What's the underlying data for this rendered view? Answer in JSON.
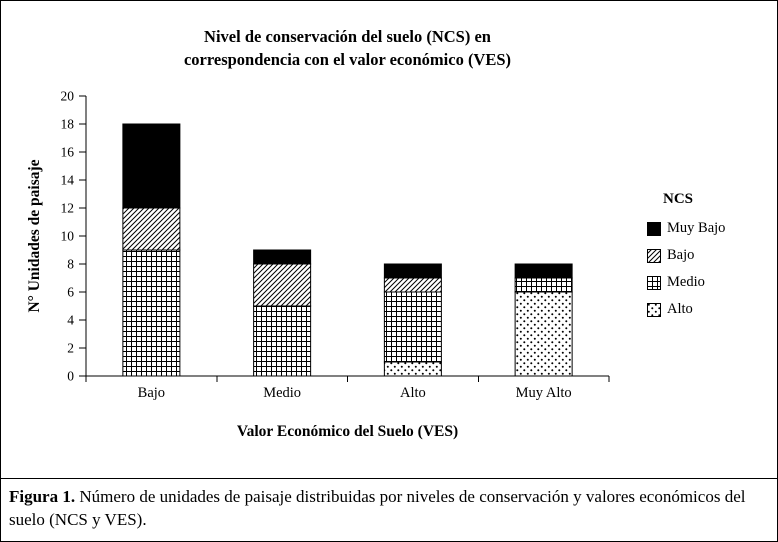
{
  "figure": {
    "caption_label": "Figura 1.",
    "caption_text": " Número de unidades de paisaje distribuidas por niveles de conservación y valores económicos del suelo (NCS y VES)."
  },
  "chart_data": {
    "type": "bar",
    "stacked": true,
    "title_line1": "Nivel de conservación del suelo (NCS) en",
    "title_line2": "correspondencia con el valor económico (VES)",
    "xlabel": "Valor Económico del Suelo (VES)",
    "ylabel": "N° Unidades de paisaje",
    "categories": [
      "Bajo",
      "Medio",
      "Alto",
      "Muy Alto"
    ],
    "series": [
      {
        "name": "Alto",
        "pattern": "dots",
        "values": [
          0,
          0,
          1,
          6
        ]
      },
      {
        "name": "Medio",
        "pattern": "grid",
        "values": [
          9,
          5,
          5,
          1
        ]
      },
      {
        "name": "Bajo",
        "pattern": "diagonal",
        "values": [
          3,
          3,
          1,
          0
        ]
      },
      {
        "name": "Muy Bajo",
        "pattern": "solid",
        "values": [
          6,
          1,
          1,
          1
        ]
      }
    ],
    "totals": [
      18,
      9,
      8,
      8
    ],
    "legend_title": "NCS",
    "legend_order": [
      "Muy Bajo",
      "Bajo",
      "Medio",
      "Alto"
    ],
    "legend_position": "right",
    "ylim": [
      0,
      20
    ],
    "ytick_step": 2,
    "grid": false,
    "bar_color": "#000000",
    "background": "#ffffff"
  }
}
